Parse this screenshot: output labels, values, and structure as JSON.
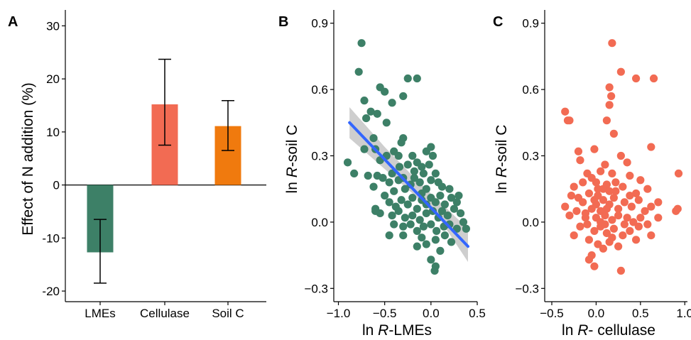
{
  "chart_data": [
    {
      "panel": "A",
      "type": "bar",
      "ylabel": "Effect of N addition (%)",
      "xlabel": "",
      "categories": [
        "LMEs",
        "Cellulase",
        "Soil C"
      ],
      "values": [
        -12.7,
        15.2,
        11.1
      ],
      "error_low": [
        -18.5,
        7.5,
        6.5
      ],
      "error_high": [
        -6.5,
        23.7,
        15.9
      ],
      "colors": [
        "#3d8067",
        "#f26b53",
        "#f07a0e"
      ],
      "ylim": [
        -22,
        33
      ],
      "yticks": [
        -20,
        -10,
        0,
        10,
        20,
        30
      ],
      "zero_line": true,
      "grid": false
    },
    {
      "panel": "B",
      "type": "scatter",
      "xlabel_pre": "ln ",
      "xlabel_var": "R",
      "xlabel_post": "-LMEs",
      "ylabel_pre": "ln ",
      "ylabel_var": "R",
      "ylabel_post": "-soil C",
      "xlim": [
        -1.05,
        0.5
      ],
      "ylim": [
        -0.36,
        0.96
      ],
      "xticks": [
        -1.0,
        -0.5,
        0.0,
        0.5
      ],
      "xtick_labels": [
        "−1.0",
        "−0.5",
        "0.0",
        "0.5"
      ],
      "yticks": [
        -0.3,
        0.0,
        0.3,
        0.6,
        0.9
      ],
      "ytick_labels": [
        "−0.3",
        "0.0",
        "0.3",
        "0.6",
        "0.9"
      ],
      "point_color": "#3d8067",
      "fit_color": "#3366ff",
      "ci_color": "#bdbdbd",
      "fit": {
        "x": [
          -0.88,
          0.4
        ],
        "y": [
          0.45,
          -0.11
        ]
      },
      "ci": {
        "x": [
          -0.88,
          -0.5,
          -0.2,
          0.1,
          0.4
        ],
        "upper": [
          0.52,
          0.34,
          0.21,
          0.09,
          -0.03
        ],
        "lower": [
          0.38,
          0.24,
          0.13,
          0.01,
          -0.18
        ]
      },
      "points": [
        [
          -0.75,
          0.81
        ],
        [
          -0.78,
          0.68
        ],
        [
          -0.72,
          0.55
        ],
        [
          -0.55,
          0.61
        ],
        [
          -0.5,
          0.59
        ],
        [
          -0.25,
          0.65
        ],
        [
          -0.15,
          0.65
        ],
        [
          -0.3,
          0.57
        ],
        [
          -0.42,
          0.54
        ],
        [
          -0.65,
          0.5
        ],
        [
          -0.58,
          0.49
        ],
        [
          -0.48,
          0.45
        ],
        [
          -0.7,
          0.47
        ],
        [
          -0.62,
          0.38
        ],
        [
          -0.3,
          0.38
        ],
        [
          -0.9,
          0.27
        ],
        [
          -0.83,
          0.22
        ],
        [
          -0.72,
          0.33
        ],
        [
          -0.6,
          0.33
        ],
        [
          -0.55,
          0.28
        ],
        [
          -0.48,
          0.3
        ],
        [
          -0.4,
          0.32
        ],
        [
          -0.35,
          0.3
        ],
        [
          -0.32,
          0.36
        ],
        [
          -0.25,
          0.26
        ],
        [
          -0.2,
          0.3
        ],
        [
          -0.15,
          0.27
        ],
        [
          -0.1,
          0.25
        ],
        [
          -0.05,
          0.32
        ],
        [
          0.0,
          0.34
        ],
        [
          0.02,
          0.3
        ],
        [
          -0.58,
          0.21
        ],
        [
          -0.52,
          0.2
        ],
        [
          -0.45,
          0.18
        ],
        [
          -0.4,
          0.14
        ],
        [
          -0.35,
          0.19
        ],
        [
          -0.3,
          0.2
        ],
        [
          -0.22,
          0.17
        ],
        [
          -0.18,
          0.23
        ],
        [
          -0.12,
          0.18
        ],
        [
          -0.08,
          0.22
        ],
        [
          -0.05,
          0.15
        ],
        [
          0.0,
          0.19
        ],
        [
          0.05,
          0.22
        ],
        [
          -0.28,
          0.15
        ],
        [
          -0.5,
          0.12
        ],
        [
          -0.45,
          0.09
        ],
        [
          -0.38,
          0.07
        ],
        [
          -0.32,
          0.1
        ],
        [
          -0.25,
          0.08
        ],
        [
          -0.2,
          0.11
        ],
        [
          -0.15,
          0.06
        ],
        [
          -0.1,
          0.1
        ],
        [
          -0.05,
          0.08
        ],
        [
          0.0,
          0.11
        ],
        [
          0.05,
          0.09
        ],
        [
          0.1,
          0.12
        ],
        [
          0.15,
          0.08
        ],
        [
          0.2,
          0.15
        ],
        [
          0.22,
          0.11
        ],
        [
          -0.6,
          0.06
        ],
        [
          -0.55,
          0.04
        ],
        [
          -0.42,
          0.03
        ],
        [
          -0.35,
          0.05
        ],
        [
          -0.28,
          0.02
        ],
        [
          -0.2,
          0.03
        ],
        [
          -0.12,
          0.01
        ],
        [
          -0.05,
          0.04
        ],
        [
          0.02,
          0.05
        ],
        [
          0.08,
          0.02
        ],
        [
          0.12,
          0.05
        ],
        [
          0.18,
          0.03
        ],
        [
          0.25,
          0.06
        ],
        [
          0.28,
          0.09
        ],
        [
          0.32,
          0.04
        ],
        [
          -0.4,
          -0.01
        ],
        [
          -0.3,
          -0.02
        ],
        [
          -0.22,
          -0.01
        ],
        [
          -0.15,
          -0.04
        ],
        [
          -0.08,
          -0.02
        ],
        [
          0.0,
          -0.01
        ],
        [
          0.06,
          -0.04
        ],
        [
          0.14,
          -0.02
        ],
        [
          0.2,
          -0.01
        ],
        [
          0.28,
          -0.03
        ],
        [
          0.35,
          0.0
        ],
        [
          0.38,
          -0.03
        ],
        [
          -0.45,
          -0.06
        ],
        [
          -0.3,
          -0.06
        ],
        [
          -0.1,
          -0.07
        ],
        [
          0.05,
          -0.08
        ],
        [
          0.15,
          -0.06
        ],
        [
          -0.05,
          -0.1
        ],
        [
          0.1,
          -0.13
        ],
        [
          0.0,
          -0.17
        ],
        [
          0.05,
          -0.2
        ],
        [
          0.04,
          -0.22
        ],
        [
          -0.15,
          -0.11
        ],
        [
          0.22,
          -0.09
        ],
        [
          -0.6,
          0.05
        ],
        [
          -0.62,
          0.16
        ],
        [
          -0.68,
          0.21
        ],
        [
          0.3,
          0.12
        ],
        [
          0.12,
          0.16
        ],
        [
          -0.1,
          0.13
        ],
        [
          -0.34,
          0.25
        ],
        [
          -0.42,
          0.22
        ],
        [
          0.08,
          0.18
        ],
        [
          -0.02,
          0.26
        ],
        [
          -0.18,
          0.2
        ]
      ]
    },
    {
      "panel": "C",
      "type": "scatter",
      "xlabel_pre": "ln ",
      "xlabel_var": "R",
      "xlabel_post": "- cellulase",
      "ylabel_pre": "ln ",
      "ylabel_var": "R",
      "ylabel_post": "-soil C",
      "xlim": [
        -0.58,
        1.03
      ],
      "ylim": [
        -0.36,
        0.96
      ],
      "xticks": [
        -0.5,
        0.0,
        0.5,
        1.0
      ],
      "xtick_labels": [
        "−0.5",
        "0.0",
        "0.5",
        "1.0"
      ],
      "yticks": [
        -0.3,
        0.0,
        0.3,
        0.6,
        0.9
      ],
      "ytick_labels": [
        "−0.3",
        "0.0",
        "0.3",
        "0.6",
        "0.9"
      ],
      "point_color": "#f26b53",
      "points": [
        [
          0.18,
          0.81
        ],
        [
          0.28,
          0.68
        ],
        [
          0.15,
          0.61
        ],
        [
          0.17,
          0.57
        ],
        [
          0.45,
          0.65
        ],
        [
          0.65,
          0.65
        ],
        [
          0.15,
          0.53
        ],
        [
          0.12,
          0.46
        ],
        [
          0.2,
          0.4
        ],
        [
          -0.35,
          0.5
        ],
        [
          -0.32,
          0.46
        ],
        [
          -0.3,
          0.46
        ],
        [
          -0.2,
          0.32
        ],
        [
          -0.02,
          0.33
        ],
        [
          -0.18,
          0.28
        ],
        [
          0.28,
          0.3
        ],
        [
          0.35,
          0.27
        ],
        [
          0.62,
          0.34
        ],
        [
          0.93,
          0.22
        ],
        [
          0.05,
          0.23
        ],
        [
          0.1,
          0.26
        ],
        [
          0.18,
          0.22
        ],
        [
          -0.1,
          0.22
        ],
        [
          -0.05,
          0.2
        ],
        [
          0.0,
          0.18
        ],
        [
          0.12,
          0.17
        ],
        [
          0.22,
          0.14
        ],
        [
          0.3,
          0.16
        ],
        [
          0.38,
          0.21
        ],
        [
          0.5,
          0.19
        ],
        [
          0.58,
          0.15
        ],
        [
          0.45,
          0.13
        ],
        [
          -0.25,
          0.16
        ],
        [
          -0.2,
          0.11
        ],
        [
          -0.15,
          0.09
        ],
        [
          -0.08,
          0.13
        ],
        [
          0.02,
          0.12
        ],
        [
          0.08,
          0.1
        ],
        [
          0.15,
          0.08
        ],
        [
          0.2,
          0.11
        ],
        [
          0.25,
          0.06
        ],
        [
          0.32,
          0.09
        ],
        [
          0.4,
          0.07
        ],
        [
          0.48,
          0.1
        ],
        [
          0.55,
          0.05
        ],
        [
          0.62,
          0.07
        ],
        [
          0.7,
          0.09
        ],
        [
          0.9,
          0.05
        ],
        [
          0.92,
          0.06
        ],
        [
          -0.35,
          0.07
        ],
        [
          -0.3,
          0.03
        ],
        [
          -0.22,
          0.05
        ],
        [
          -0.12,
          0.04
        ],
        [
          -0.05,
          0.06
        ],
        [
          0.0,
          0.02
        ],
        [
          0.05,
          0.05
        ],
        [
          0.1,
          0.03
        ],
        [
          0.18,
          0.01
        ],
        [
          0.25,
          0.03
        ],
        [
          0.35,
          0.02
        ],
        [
          0.42,
          0.0
        ],
        [
          0.5,
          0.02
        ],
        [
          0.58,
          -0.01
        ],
        [
          -0.18,
          -0.02
        ],
        [
          -0.1,
          -0.01
        ],
        [
          -0.02,
          -0.04
        ],
        [
          0.05,
          -0.02
        ],
        [
          0.12,
          -0.05
        ],
        [
          0.2,
          -0.03
        ],
        [
          0.3,
          -0.06
        ],
        [
          0.38,
          -0.04
        ],
        [
          0.45,
          -0.08
        ],
        [
          0.62,
          -0.06
        ],
        [
          -0.25,
          -0.06
        ],
        [
          -0.08,
          -0.08
        ],
        [
          0.02,
          -0.1
        ],
        [
          0.08,
          -0.12
        ],
        [
          0.15,
          -0.09
        ],
        [
          -0.05,
          -0.15
        ],
        [
          -0.08,
          -0.17
        ],
        [
          -0.02,
          -0.2
        ],
        [
          0.28,
          -0.22
        ],
        [
          0.25,
          -0.11
        ],
        [
          -0.28,
          0.12
        ],
        [
          -0.15,
          0.18
        ],
        [
          0.08,
          0.15
        ],
        [
          0.15,
          0.14
        ],
        [
          0.0,
          0.08
        ],
        [
          0.05,
          0.0
        ],
        [
          0.12,
          0.06
        ],
        [
          0.22,
          0.18
        ],
        [
          -0.12,
          0.02
        ],
        [
          0.32,
          -0.01
        ],
        [
          0.18,
          -0.07
        ],
        [
          -0.02,
          0.1
        ],
        [
          0.1,
          -0.01
        ],
        [
          0.02,
          0.15
        ],
        [
          0.38,
          0.12
        ],
        [
          0.48,
          -0.02
        ],
        [
          0.7,
          0.02
        ]
      ]
    }
  ],
  "panel_labels": [
    "A",
    "B",
    "C"
  ]
}
